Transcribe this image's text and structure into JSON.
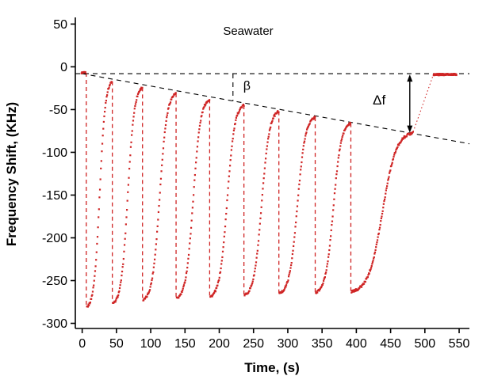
{
  "chart_data": {
    "type": "scatter",
    "title": "Seawater",
    "xlabel": "Time, (s)",
    "ylabel": "Frequency Shift, (KHz)",
    "xlim": [
      -10,
      565
    ],
    "ylim": [
      -306,
      55
    ],
    "xticks": [
      0,
      50,
      100,
      150,
      200,
      250,
      300,
      350,
      400,
      450,
      500,
      550
    ],
    "yticks": [
      50,
      0,
      -50,
      -100,
      -150,
      -200,
      -250,
      -300
    ],
    "grid": false,
    "legend": "none",
    "point_color": "#cf2525",
    "baseline": {
      "y": -8,
      "x0": -10,
      "x1": 565,
      "style": "dashed-black"
    },
    "trend": {
      "x0": 0,
      "y0": -8,
      "x1": 565,
      "y1": -90,
      "style": "dashed-black"
    },
    "initial_segment": {
      "t0": -1,
      "t1": 5,
      "y": -7
    },
    "final_segment": {
      "t0": 513,
      "t1": 546,
      "y": -9
    },
    "connector": {
      "x0": 483,
      "y0": -76,
      "x1": 512,
      "y1": -10,
      "style": "dotted-red"
    },
    "sigmoid_k": 9,
    "noise": 1.3,
    "rises": [
      {
        "t0": 7,
        "t1": 44,
        "y0": -281,
        "y1": -17
      },
      {
        "t0": 45,
        "t1": 88,
        "y0": -277,
        "y1": -24
      },
      {
        "t0": 89,
        "t1": 137,
        "y0": -273,
        "y1": -31
      },
      {
        "t0": 138,
        "t1": 186,
        "y0": -271,
        "y1": -38
      },
      {
        "t0": 187,
        "t1": 236,
        "y0": -269,
        "y1": -45
      },
      {
        "t0": 237,
        "t1": 287,
        "y0": -267,
        "y1": -52
      },
      {
        "t0": 288,
        "t1": 340,
        "y0": -265,
        "y1": -59
      },
      {
        "t0": 341,
        "t1": 392,
        "y0": -264,
        "y1": -66
      },
      {
        "t0": 393,
        "t1": 483,
        "y0": -263,
        "y1": -77
      }
    ],
    "drops": [
      {
        "t": 6,
        "y0": -7,
        "y1": -281
      },
      {
        "t": 44,
        "y0": -17,
        "y1": -277
      },
      {
        "t": 88,
        "y0": -24,
        "y1": -273
      },
      {
        "t": 137,
        "y0": -31,
        "y1": -271
      },
      {
        "t": 186,
        "y0": -38,
        "y1": -269
      },
      {
        "t": 236,
        "y0": -45,
        "y1": -267
      },
      {
        "t": 287,
        "y0": -52,
        "y1": -265
      },
      {
        "t": 340,
        "y0": -59,
        "y1": -264
      },
      {
        "t": 392,
        "y0": -66,
        "y1": -263
      }
    ],
    "annotations": {
      "beta": {
        "label": "β",
        "x": 235,
        "y": -27,
        "tick": {
          "x": 220,
          "y0": -8,
          "y1": -40
        }
      },
      "delta_f": {
        "label": "Δf",
        "x": 424,
        "y": -44,
        "arrow": {
          "x": 478,
          "y0": -9,
          "y1": -77
        }
      }
    }
  }
}
